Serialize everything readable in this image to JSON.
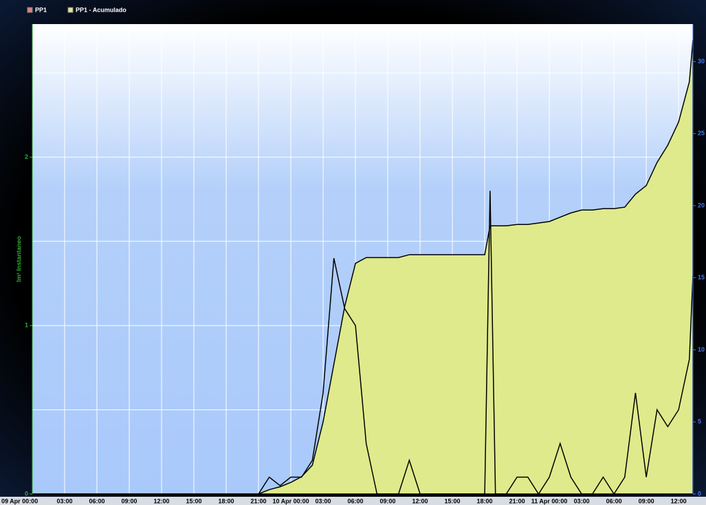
{
  "chart_data": {
    "type": "line",
    "ylabel": "lm² Instantaneo",
    "x": [
      "09 Apr 00:00",
      "09 Apr 01:00",
      "09 Apr 02:00",
      "09 Apr 03:00",
      "09 Apr 04:00",
      "09 Apr 05:00",
      "09 Apr 06:00",
      "09 Apr 07:00",
      "09 Apr 08:00",
      "09 Apr 09:00",
      "09 Apr 10:00",
      "09 Apr 11:00",
      "09 Apr 12:00",
      "09 Apr 13:00",
      "09 Apr 14:00",
      "09 Apr 15:00",
      "09 Apr 16:00",
      "09 Apr 17:00",
      "09 Apr 18:00",
      "09 Apr 19:00",
      "09 Apr 20:00",
      "09 Apr 21:00",
      "09 Apr 22:00",
      "09 Apr 23:00",
      "10 Apr 00:00",
      "10 Apr 01:00",
      "10 Apr 02:00",
      "10 Apr 03:00",
      "10 Apr 04:00",
      "10 Apr 05:00",
      "10 Apr 06:00",
      "10 Apr 07:00",
      "10 Apr 08:00",
      "10 Apr 09:00",
      "10 Apr 10:00",
      "10 Apr 11:00",
      "10 Apr 12:00",
      "10 Apr 13:00",
      "10 Apr 14:00",
      "10 Apr 15:00",
      "10 Apr 16:00",
      "10 Apr 17:00",
      "10 Apr 18:00",
      "10 Apr 18:30",
      "10 Apr 19:00",
      "10 Apr 20:00",
      "10 Apr 21:00",
      "10 Apr 22:00",
      "10 Apr 23:00",
      "11 Apr 00:00",
      "11 Apr 01:00",
      "11 Apr 02:00",
      "11 Apr 03:00",
      "11 Apr 04:00",
      "11 Apr 05:00",
      "11 Apr 06:00",
      "11 Apr 07:00",
      "11 Apr 08:00",
      "11 Apr 09:00",
      "11 Apr 10:00",
      "11 Apr 11:00",
      "11 Apr 12:00",
      "11 Apr 13:00",
      "11 Apr 13:20"
    ],
    "series": [
      {
        "name": "PP1",
        "color": "#000000",
        "legend_color": "#e08080",
        "values": [
          0,
          0,
          0,
          0,
          0,
          0,
          0,
          0,
          0,
          0,
          0,
          0,
          0,
          0,
          0,
          0,
          0,
          0,
          0,
          0,
          0,
          0,
          0.1,
          0.05,
          0.1,
          0.1,
          0.2,
          0.6,
          1.4,
          1.1,
          1.0,
          0.3,
          0,
          0,
          0,
          0.2,
          0,
          0,
          0,
          0,
          0,
          0,
          0,
          1.8,
          0,
          0,
          0.1,
          0.1,
          0,
          0.1,
          0.3,
          0.1,
          0,
          0,
          0.1,
          0,
          0.1,
          0.6,
          0.1,
          0.5,
          0.4,
          0.5,
          0.8,
          1.3
        ]
      },
      {
        "name": "PP1 - Acumulado",
        "color": "#dfea8c",
        "axis": "y2",
        "area": true,
        "values": [
          0,
          0,
          0,
          0,
          0,
          0,
          0,
          0,
          0,
          0,
          0,
          0,
          0,
          0,
          0,
          0,
          0,
          0,
          0,
          0,
          0,
          0,
          0.3,
          0.5,
          0.8,
          1.2,
          2.0,
          5.0,
          9.0,
          13.0,
          16.0,
          16.4,
          16.4,
          16.4,
          16.4,
          16.6,
          16.6,
          16.6,
          16.6,
          16.6,
          16.6,
          16.6,
          16.6,
          18.6,
          18.6,
          18.6,
          18.7,
          18.7,
          18.8,
          18.9,
          19.2,
          19.5,
          19.7,
          19.7,
          19.8,
          19.8,
          19.9,
          20.8,
          21.4,
          23.0,
          24.2,
          25.8,
          28.6,
          31.5
        ]
      }
    ],
    "xlim": [
      "09 Apr 00:00",
      "11 Apr 13:20"
    ],
    "xticks": [
      {
        "value": "09 Apr 00:00",
        "label": "09 Apr 00:00"
      },
      {
        "value": "09 Apr 03:00",
        "label": "03:00"
      },
      {
        "value": "09 Apr 06:00",
        "label": "06:00"
      },
      {
        "value": "09 Apr 09:00",
        "label": "09:00"
      },
      {
        "value": "09 Apr 12:00",
        "label": "12:00"
      },
      {
        "value": "09 Apr 15:00",
        "label": "15:00"
      },
      {
        "value": "09 Apr 18:00",
        "label": "18:00"
      },
      {
        "value": "09 Apr 21:00",
        "label": "21:00"
      },
      {
        "value": "10 Apr 00:00",
        "label": "10 Apr 00:00"
      },
      {
        "value": "10 Apr 03:00",
        "label": "03:00"
      },
      {
        "value": "10 Apr 06:00",
        "label": "06:00"
      },
      {
        "value": "10 Apr 09:00",
        "label": "09:00"
      },
      {
        "value": "10 Apr 12:00",
        "label": "12:00"
      },
      {
        "value": "10 Apr 15:00",
        "label": "15:00"
      },
      {
        "value": "10 Apr 18:00",
        "label": "18:00"
      },
      {
        "value": "10 Apr 21:00",
        "label": "21:00"
      },
      {
        "value": "11 Apr 00:00",
        "label": "11 Apr 00:00"
      },
      {
        "value": "11 Apr 03:00",
        "label": "03:00"
      },
      {
        "value": "11 Apr 06:00",
        "label": "06:00"
      },
      {
        "value": "11 Apr 09:00",
        "label": "09:00"
      },
      {
        "value": "11 Apr 12:00",
        "label": "12:00"
      }
    ],
    "ylim": [
      0,
      2.79
    ],
    "yticks": [
      0,
      1,
      2
    ],
    "y2lim": [
      0,
      32.6
    ],
    "y2ticks": [
      0,
      5,
      10,
      15,
      20,
      25,
      30
    ],
    "grid": true
  }
}
